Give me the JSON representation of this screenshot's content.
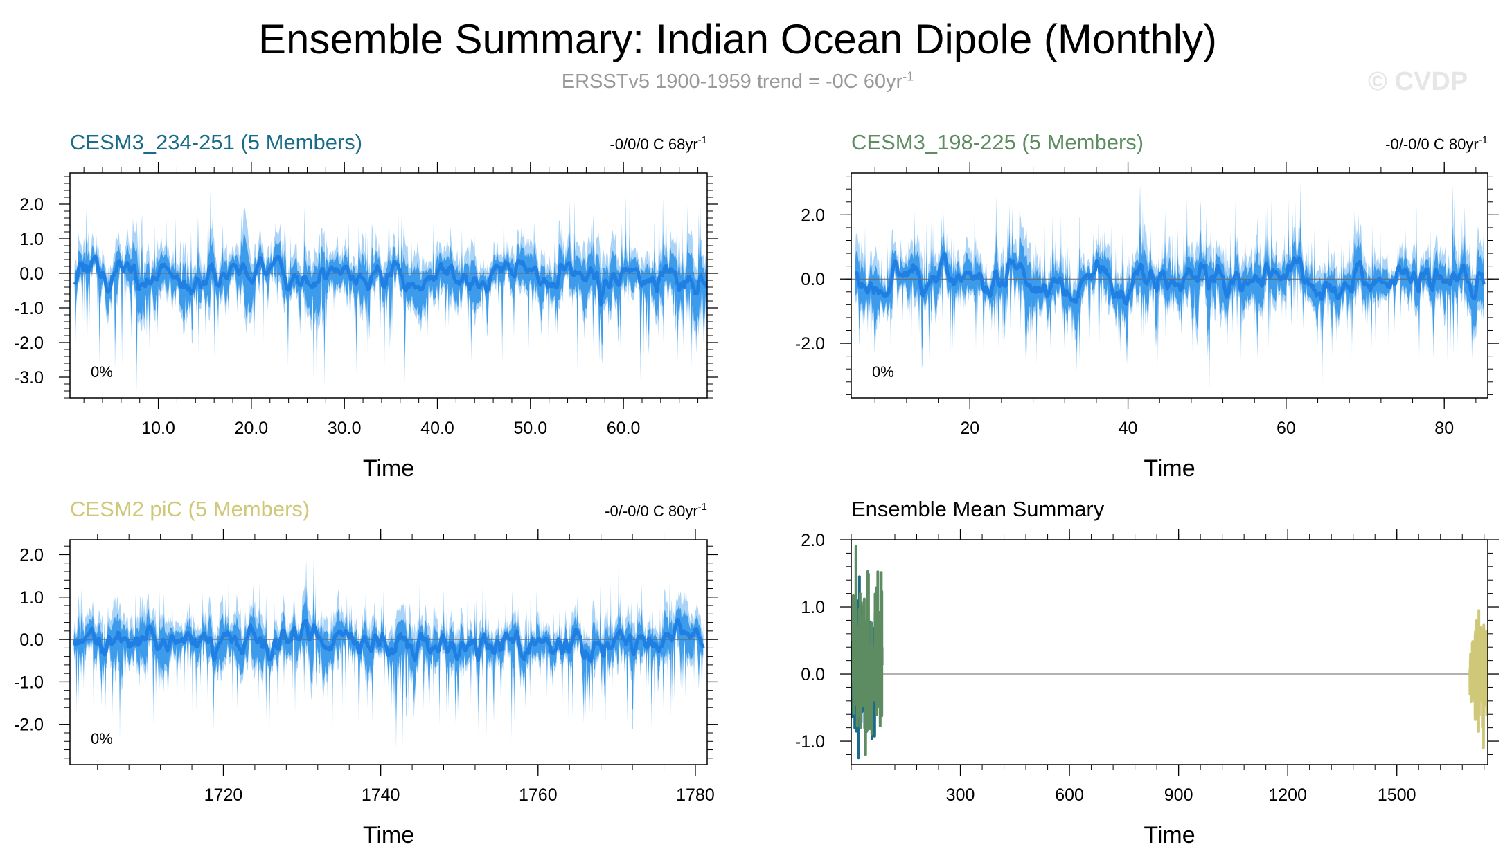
{
  "title": "Ensemble Summary: Indian Ocean Dipole (Monthly)",
  "subtitle": {
    "text": "ERSSTv5 1900-1959 trend = -0C 60yr",
    "superscript": "-1"
  },
  "copyright": "© CVDP",
  "colors": {
    "member_light": "#A9D3F7",
    "member_spread": "#3D9BEB",
    "ensemble_mean": "#1F7FE3",
    "zero_line": "#666666"
  },
  "chart_data": [
    {
      "type": "line",
      "title": "CESM3_234-251 (5 Members)",
      "title_color": "#1A6B8A",
      "trend_label": "-0/0/0 C 68yr",
      "trend_superscript": "-1",
      "percent_label": "0%",
      "xlabel": "Time",
      "xlim": [
        0.5,
        69
      ],
      "ylim": [
        -3.6,
        2.9
      ],
      "xticks": [
        10,
        20,
        30,
        40,
        50,
        60
      ],
      "xtick_labels": [
        "10.0",
        "20.0",
        "30.0",
        "40.0",
        "50.0",
        "60.0"
      ],
      "yticks": [
        -3,
        -2,
        -1,
        0,
        1,
        2
      ],
      "ytick_labels": [
        "-3.0",
        "-2.0",
        "-1.0",
        "0.0",
        "1.0",
        "2.0"
      ],
      "x_extent": [
        1,
        69
      ],
      "y_extremes": {
        "max": 2.4,
        "min": -3.5
      }
    },
    {
      "type": "line",
      "title": "CESM3_198-225 (5 Members)",
      "title_color": "#5E8C62",
      "trend_label": "-0/-0/0 C 80yr",
      "trend_superscript": "-1",
      "percent_label": "0%",
      "xlabel": "Time",
      "xlim": [
        5,
        85.5
      ],
      "ylim": [
        -3.7,
        3.3
      ],
      "xticks": [
        20,
        40,
        60,
        80
      ],
      "xtick_labels": [
        "20",
        "40",
        "60",
        "80"
      ],
      "yticks": [
        -2,
        0,
        2
      ],
      "ytick_labels": [
        "-2.0",
        "0.0",
        "2.0"
      ],
      "x_extent": [
        5.5,
        85
      ],
      "y_extremes": {
        "max": 3.0,
        "min": -3.4
      }
    },
    {
      "type": "line",
      "title": "CESM2 piC (5 Members)",
      "title_color": "#CFC878",
      "trend_label": "-0/-0/0 C 80yr",
      "trend_superscript": "-1",
      "percent_label": "0%",
      "xlabel": "Time",
      "xlim": [
        1700.5,
        1781.5
      ],
      "ylim": [
        -2.95,
        2.35
      ],
      "xticks": [
        1720,
        1740,
        1760,
        1780
      ],
      "xtick_labels": [
        "1720",
        "1740",
        "1760",
        "1780"
      ],
      "yticks": [
        -2,
        -1,
        0,
        1,
        2
      ],
      "ytick_labels": [
        "-2.0",
        "-1.0",
        "0.0",
        "1.0",
        "2.0"
      ],
      "x_extent": [
        1701,
        1781
      ],
      "y_extremes": {
        "max": 1.9,
        "min": -2.6
      }
    },
    {
      "type": "line",
      "title": "Ensemble Mean Summary",
      "title_color": "#000000",
      "xlabel": "Time",
      "xlim": [
        0,
        1750
      ],
      "ylim": [
        -1.35,
        2.0
      ],
      "xticks": [
        300,
        600,
        900,
        1200,
        1500
      ],
      "xtick_labels": [
        "300",
        "600",
        "900",
        "1200",
        "1500"
      ],
      "yticks": [
        -1,
        0,
        1,
        2
      ],
      "ytick_labels": [
        "-1.0",
        "0.0",
        "1.0",
        "2.0"
      ],
      "series": [
        {
          "color": "#1A6B8A",
          "x_extent": [
            1,
            69
          ],
          "y_range": [
            -1.25,
            1.45
          ]
        },
        {
          "color": "#5E8C62",
          "x_extent": [
            5,
            85
          ],
          "y_range": [
            -1.2,
            1.9
          ]
        },
        {
          "color": "#CFC878",
          "x_extent": [
            1701,
            1781
          ],
          "y_range": [
            -1.1,
            1.0
          ]
        }
      ]
    }
  ]
}
